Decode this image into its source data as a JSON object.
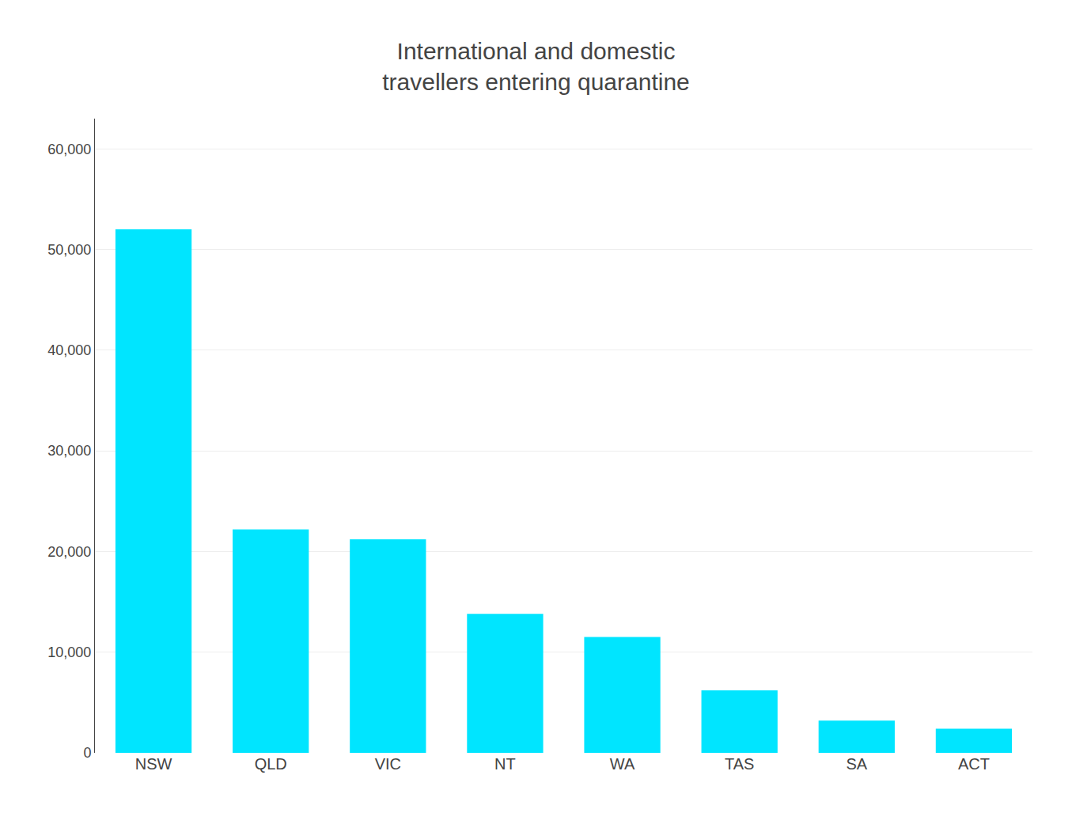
{
  "chart_data": {
    "type": "bar",
    "title": "International and domestic\ntravellers entering quarantine",
    "categories": [
      "NSW",
      "QLD",
      "VIC",
      "NT",
      "WA",
      "TAS",
      "SA",
      "ACT"
    ],
    "values": [
      52000,
      22200,
      21200,
      13800,
      11500,
      6200,
      3200,
      2400
    ],
    "color": "#00E5FF",
    "ylim": [
      0,
      63000
    ],
    "yticks": [
      0,
      {
        "value": 10000,
        "label": "10,000"
      },
      {
        "value": 20000,
        "label": "20,000"
      },
      {
        "value": 30000,
        "label": "30,000"
      },
      {
        "value": 40000,
        "label": "40,000"
      },
      {
        "value": 50000,
        "label": "50,000"
      },
      {
        "value": 60000,
        "label": "60,000"
      }
    ],
    "grid": true
  }
}
